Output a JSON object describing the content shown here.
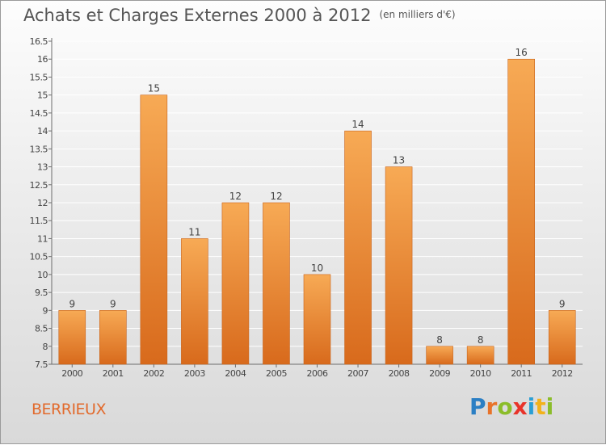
{
  "title": "Achats et Charges Externes 2000 à 2012",
  "unit": "(en milliers d'€)",
  "location": "BERRIEUX",
  "logo": {
    "text": "Proxiti",
    "letters": [
      {
        "ch": "P",
        "color": "#2b7fc4"
      },
      {
        "ch": "r",
        "color": "#e8732a"
      },
      {
        "ch": "o",
        "color": "#8bbd2a"
      },
      {
        "ch": "x",
        "color": "#e8332a"
      },
      {
        "ch": "i",
        "color": "#2b9fd4"
      },
      {
        "ch": "t",
        "color": "#f2b21b"
      },
      {
        "ch": "i",
        "color": "#8bbd2a"
      }
    ]
  },
  "colors": {
    "bar_top": "#f7aa55",
    "bar_bottom": "#d86a1c",
    "bar_edge": "#c8641d",
    "axis": "#6e6e6e",
    "grid": "#ffffff",
    "text": "#444444"
  },
  "chart_data": {
    "type": "bar",
    "categories": [
      "2000",
      "2001",
      "2002",
      "2003",
      "2004",
      "2005",
      "2006",
      "2007",
      "2008",
      "2009",
      "2010",
      "2011",
      "2012"
    ],
    "values": [
      9,
      9,
      15,
      11,
      12,
      12,
      10,
      14,
      13,
      8,
      8,
      16,
      9
    ],
    "data_labels": [
      "9",
      "9",
      "15",
      "11",
      "12",
      "12",
      "10",
      "14",
      "13",
      "8",
      "8",
      "16",
      "9"
    ],
    "yticks": [
      "7.5",
      "8",
      "8.5",
      "9",
      "9.5",
      "10",
      "10.5",
      "11",
      "11.5",
      "12",
      "12.5",
      "13",
      "13.5",
      "14",
      "14.5",
      "15",
      "15.5",
      "16",
      "16.5"
    ],
    "ylim": [
      7.5,
      16.5
    ],
    "xlabel": "",
    "ylabel": "",
    "grid": true,
    "legend": "none"
  }
}
